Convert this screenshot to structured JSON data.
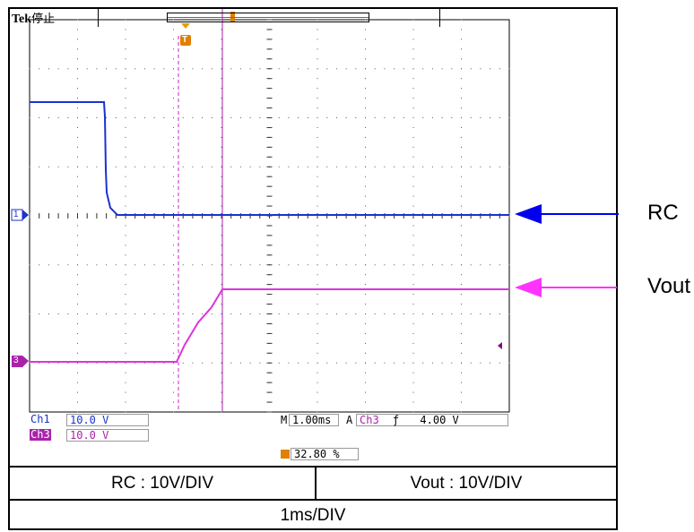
{
  "scope": {
    "brand": "Tek",
    "status": "停止",
    "ch1": {
      "label": "Ch1",
      "value": "10.0 V",
      "color": "#1b33cc"
    },
    "ch3": {
      "label": "Ch3",
      "value": "10.0 V",
      "color": "#cc22cc"
    },
    "timebase": {
      "prefix": "M",
      "value": "1.00ms"
    },
    "trigger": {
      "mode": "A",
      "source": "Ch3",
      "slope": "ƒ",
      "level": "4.00 V"
    },
    "trigger_position": "32.80 %",
    "markers": {
      "ch1": "1",
      "ch3": "3",
      "trigger": "T"
    }
  },
  "table": {
    "rc_scale": "RC : 10V/DIV",
    "vout_scale": "Vout : 10V/DIV",
    "time_scale": "1ms/DIV"
  },
  "annotations": {
    "rc": "RC",
    "vout": "Vout",
    "arrow_colors": {
      "rc": "#0000ee",
      "vout": "#ff33ff"
    }
  }
}
